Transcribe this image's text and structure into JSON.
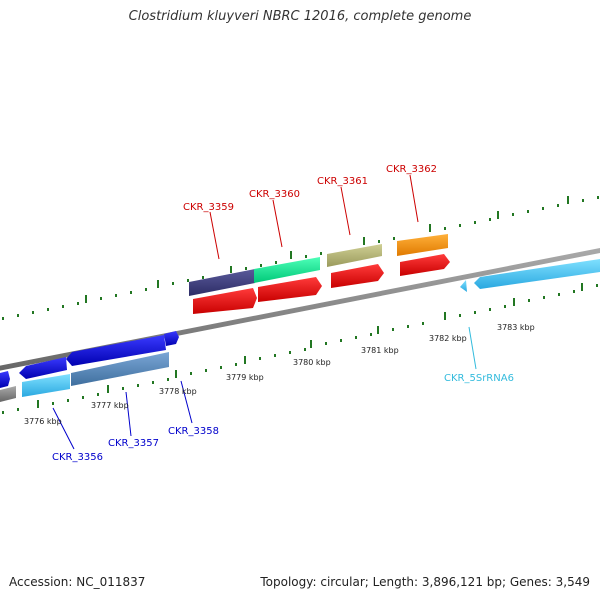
{
  "title": "Clostridium kluyveri NBRC 12016, complete genome",
  "accession_label": "Accession: NC_011837",
  "summary_label": "Topology: circular; Length: 3,896,121 bp; Genes: 3,549",
  "axis_ticks": [
    "3776 kbp",
    "3777 kbp",
    "3778 kbp",
    "3779 kbp",
    "3780 kbp",
    "3781 kbp",
    "3782 kbp",
    "3783 kbp"
  ],
  "gene_labels": {
    "CKR_3359": "CKR_3359",
    "CKR_3360": "CKR_3360",
    "CKR_3361": "CKR_3361",
    "CKR_3362": "CKR_3362",
    "CKR_3356": "CKR_3356",
    "CKR_3357": "CKR_3357",
    "CKR_3358": "CKR_3358",
    "CKR_5SrRNA6": "CKR_5SrRNA6"
  },
  "colors": {
    "forward_label": "#cc0000",
    "reverse_label": "#0000cc",
    "rrna_label": "#33bbdd",
    "tick": "#227722",
    "backbone": "#888888"
  }
}
